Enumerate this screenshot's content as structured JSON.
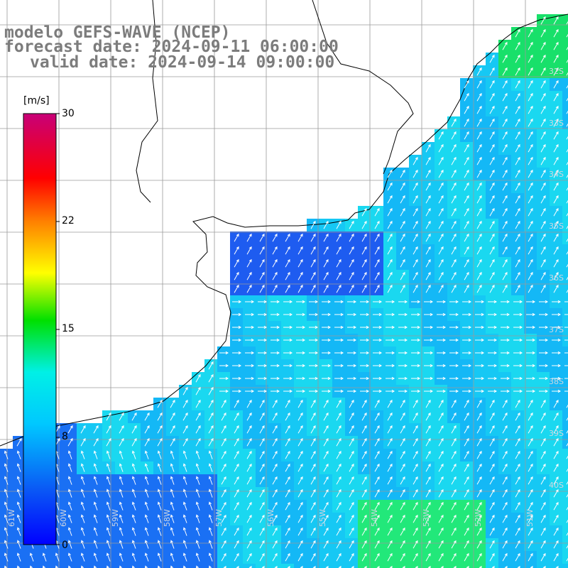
{
  "header": {
    "model": "modelo GEFS-WAVE (NCEP)",
    "forecast": "forecast date: 2024-09-11 06:00:00",
    "valid": "valid date: 2024-09-14 09:00:00"
  },
  "colorbar": {
    "unit": "[m/s]",
    "ticks": [
      "30",
      "22",
      "15",
      "8",
      "0"
    ],
    "tick_values": [
      30,
      22,
      15,
      8,
      0
    ],
    "range": [
      0,
      30
    ],
    "colors": [
      "#0000ff",
      "#0a5af5",
      "#00c8ff",
      "#00f0e6",
      "#00e000",
      "#ffff00",
      "#ff8000",
      "#ff0000",
      "#c80078"
    ]
  },
  "latitude_labels": [
    "32S",
    "33S",
    "34S",
    "35S",
    "36S",
    "37S",
    "38S",
    "39S",
    "40S"
  ],
  "longitude_labels": [
    "61W",
    "60W",
    "59W",
    "58W",
    "57W",
    "56W",
    "55W",
    "54W",
    "53W",
    "52W",
    "51W"
  ],
  "colors": {
    "land": "#ffffff",
    "grid": "#9a9a9a",
    "coast": "#000000",
    "arrows": "#ffffff",
    "title": "#7c7c7c"
  }
}
